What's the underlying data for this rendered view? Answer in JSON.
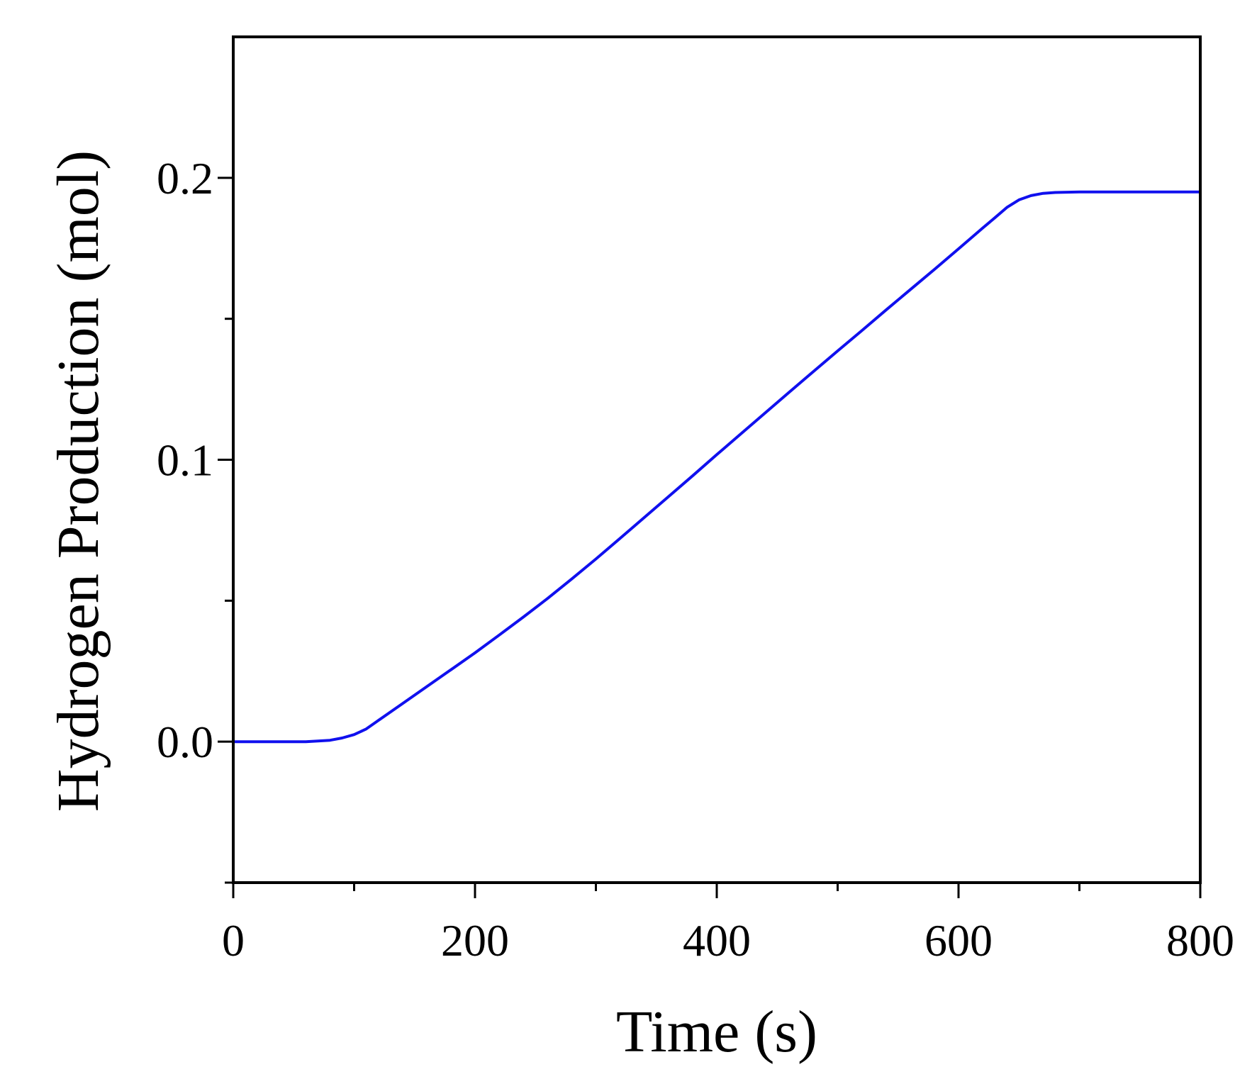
{
  "chart_data": {
    "type": "line",
    "title": "",
    "xlabel": "Time (s)",
    "ylabel": "Hydrogen Production (mol)",
    "xlim": [
      0,
      800
    ],
    "ylim": [
      -0.05,
      0.25
    ],
    "xticks": [
      0,
      200,
      400,
      600,
      800
    ],
    "xtick_labels": [
      "0",
      "200",
      "400",
      "600",
      "800"
    ],
    "xminor_ticks": [
      100,
      300,
      500,
      700
    ],
    "yticks": [
      0.0,
      0.1,
      0.2
    ],
    "ytick_labels": [
      "0.0",
      "0.1",
      "0.2"
    ],
    "yminor_ticks": [
      -0.05,
      0.05,
      0.15
    ],
    "grid": false,
    "series": [
      {
        "color": "#1010ee",
        "x": [
          0,
          20,
          40,
          60,
          80,
          90,
          100,
          110,
          120,
          140,
          160,
          180,
          200,
          220,
          240,
          260,
          280,
          300,
          320,
          340,
          360,
          380,
          400,
          420,
          440,
          460,
          480,
          500,
          520,
          540,
          560,
          580,
          600,
          620,
          630,
          640,
          650,
          660,
          670,
          680,
          700,
          720,
          740,
          760,
          780,
          800
        ],
        "y": [
          0.0,
          0.0,
          0.0,
          0.0,
          0.0005,
          0.0013,
          0.0025,
          0.0045,
          0.0075,
          0.0135,
          0.0195,
          0.0255,
          0.0315,
          0.0378,
          0.0442,
          0.0508,
          0.0577,
          0.0648,
          0.0721,
          0.0795,
          0.0869,
          0.0943,
          0.1018,
          0.1092,
          0.1166,
          0.124,
          0.1313,
          0.1386,
          0.1458,
          0.1531,
          0.1603,
          0.1675,
          0.1748,
          0.1822,
          0.1858,
          0.1895,
          0.1922,
          0.1937,
          0.1945,
          0.1948,
          0.195,
          0.195,
          0.195,
          0.195,
          0.195,
          0.195
        ]
      }
    ]
  }
}
